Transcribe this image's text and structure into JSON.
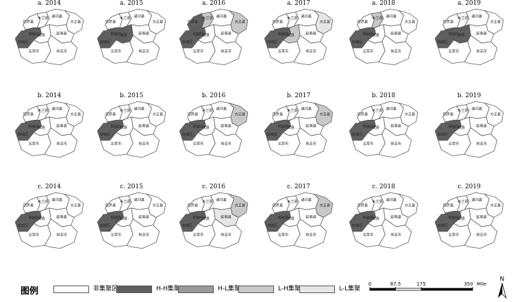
{
  "panels": [
    {
      "label": "a. 2014",
      "hh": [
        "shuangcheng",
        "acheng"
      ],
      "hl": [],
      "lh": [],
      "ll": []
    },
    {
      "label": "a. 2015",
      "hh": [
        "shuangcheng",
        "acheng",
        "bin"
      ],
      "hl": [],
      "lh": [],
      "ll": []
    },
    {
      "label": "a. 2016",
      "hh": [
        "shuangcheng",
        "acheng",
        "bayan"
      ],
      "hl": [],
      "lh": [
        "mulan",
        "fangzheng"
      ],
      "ll": []
    },
    {
      "label": "a. 2017",
      "hh": [
        "shuangcheng",
        "acheng"
      ],
      "hl": [],
      "lh": [
        "bin"
      ],
      "ll": [
        "fangzheng"
      ]
    },
    {
      "label": "a. 2018",
      "hh": [
        "shuangcheng",
        "acheng"
      ],
      "hl": [],
      "lh": [
        "mulan"
      ],
      "ll": []
    },
    {
      "label": "a. 2019",
      "hh": [
        "shuangcheng",
        "acheng",
        "bin"
      ],
      "hl": [],
      "lh": [],
      "ll": []
    },
    {
      "label": "b. 2014",
      "hh": [
        "shuangcheng",
        "acheng"
      ],
      "hl": [],
      "lh": [],
      "ll": []
    },
    {
      "label": "b. 2015",
      "hh": [
        "shuangcheng",
        "acheng"
      ],
      "hl": [],
      "lh": [],
      "ll": []
    },
    {
      "label": "b. 2016",
      "hh": [
        "shuangcheng",
        "acheng"
      ],
      "hl": [],
      "lh": [
        "fangzheng"
      ],
      "ll": []
    },
    {
      "label": "b. 2017",
      "hh": [
        "shuangcheng",
        "acheng"
      ],
      "hl": [],
      "lh": [
        "fangzheng"
      ],
      "ll": []
    },
    {
      "label": "b. 2018",
      "hh": [
        "shuangcheng",
        "acheng"
      ],
      "hl": [],
      "lh": [],
      "ll": []
    },
    {
      "label": "b. 2019",
      "hh": [
        "shuangcheng",
        "acheng"
      ],
      "hl": [],
      "lh": [],
      "ll": []
    },
    {
      "label": "c. 2014",
      "hh": [
        "shuangcheng",
        "acheng"
      ],
      "hl": [],
      "lh": [],
      "ll": []
    },
    {
      "label": "c. 2015",
      "hh": [
        "shuangcheng",
        "acheng"
      ],
      "hl": [],
      "lh": [],
      "ll": []
    },
    {
      "label": "c. 2016",
      "hh": [
        "shuangcheng",
        "acheng"
      ],
      "hl": [],
      "lh": [
        "fangzheng"
      ],
      "ll": [
        "yanshou"
      ]
    },
    {
      "label": "c. 2017",
      "hh": [
        "shuangcheng",
        "acheng"
      ],
      "hl": [],
      "lh": [
        "fangzheng"
      ],
      "ll": []
    },
    {
      "label": "c. 2018",
      "hh": [
        "shuangcheng",
        "acheng"
      ],
      "hl": [],
      "lh": [],
      "ll": []
    },
    {
      "label": "c. 2019",
      "hh": [
        "shuangcheng",
        "acheng"
      ],
      "hl": [],
      "lh": [],
      "ll": []
    }
  ],
  "region_names": {
    "bayan": "巴彦县",
    "mulan": "木兰县",
    "tonghe": "通河县",
    "fangzheng": "方正县",
    "bin": "宾县",
    "yanshou": "延寿县",
    "shuangcheng": "双城区",
    "acheng": "阿城区",
    "wuchang": "五常市",
    "shangzhi": "尚志市"
  },
  "legend": {
    "title": "图例",
    "items": [
      {
        "label": "非集聚区",
        "color": "#ffffff"
      },
      {
        "label": "H-H集聚",
        "color": "#5f5f5f"
      },
      {
        "label": "H-L集聚",
        "color": "#9a9a9a"
      },
      {
        "label": "L-H集聚",
        "color": "#c8c8c8"
      },
      {
        "label": "L-L集聚",
        "color": "#e6e6e6"
      }
    ]
  },
  "scale_bar": {
    "ticks": [
      "0",
      "87.5",
      "175",
      "350"
    ],
    "unit": "Miles"
  },
  "north_arrow": {
    "label": "N",
    "icon": "north-arrow-icon"
  },
  "colors": {
    "non": "#ffffff",
    "hh": "#5f5f5f",
    "hl": "#9a9a9a",
    "lh": "#c8c8c8",
    "ll": "#e6e6e6",
    "stroke": "#555555"
  }
}
